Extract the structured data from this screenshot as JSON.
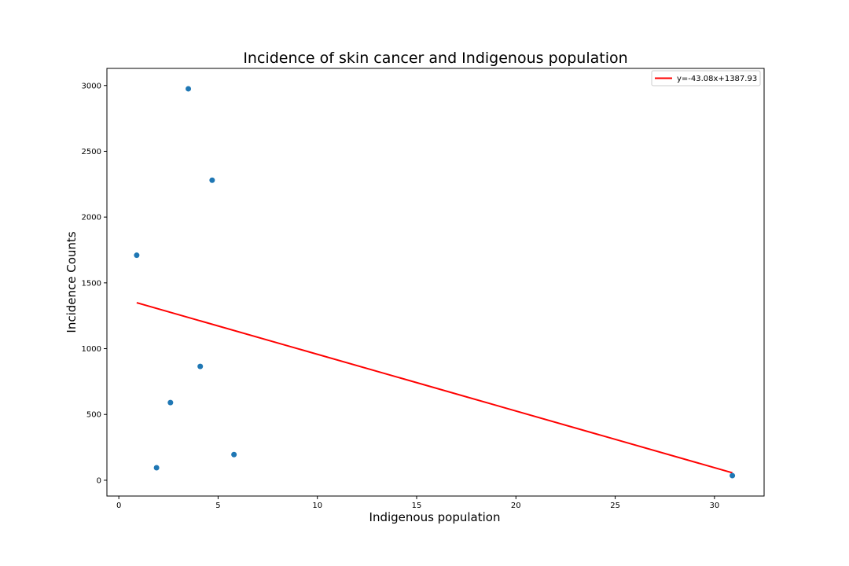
{
  "chart_data": {
    "type": "scatter",
    "title": "Incidence of skin cancer and Indigenous population",
    "xlabel": "Indigenous population",
    "ylabel": "Incidence Counts",
    "xlim": [
      -0.6,
      32.5
    ],
    "ylim": [
      -120,
      3130
    ],
    "xticks": [
      0,
      5,
      10,
      15,
      20,
      25,
      30
    ],
    "yticks": [
      0,
      500,
      1000,
      1500,
      2000,
      2500,
      3000
    ],
    "grid": false,
    "legend_position": "top-right",
    "points": {
      "color": "#1f77b4",
      "x": [
        0.9,
        1.9,
        2.6,
        3.5,
        4.1,
        4.7,
        5.8,
        30.9
      ],
      "y": [
        1710,
        95,
        590,
        2975,
        865,
        2280,
        195,
        35
      ]
    },
    "fit_line": {
      "label": "y=-43.08x+1387.93",
      "color": "#ff0000",
      "slope": -43.08,
      "intercept": 1387.93,
      "x_range": [
        0.9,
        30.9
      ]
    }
  }
}
